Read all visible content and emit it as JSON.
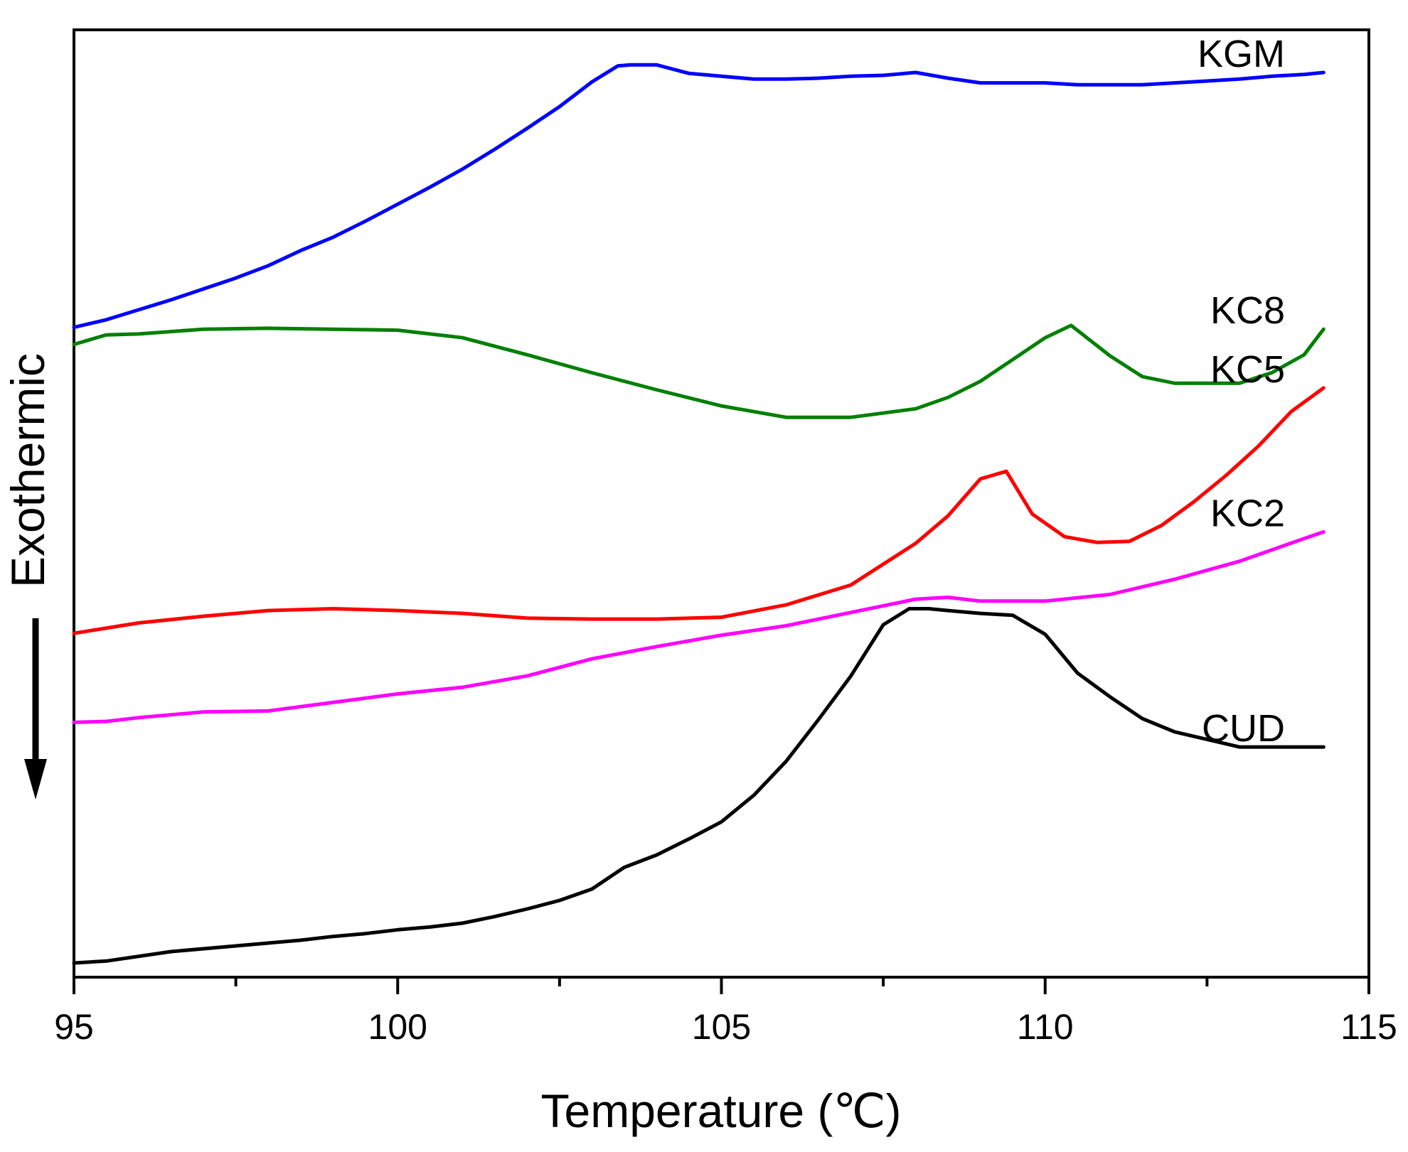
{
  "chart_data": {
    "type": "line",
    "title": "",
    "xlabel": "Temperature (℃)",
    "ylabel": "Exothermic",
    "xlim": [
      95,
      115
    ],
    "ylim": [
      0,
      100
    ],
    "xticks": [
      "95",
      "100",
      "105",
      "110",
      "115"
    ],
    "yticks_shown": false,
    "legend": "inline labels at right end of each curve",
    "series": [
      {
        "name": "KGM",
        "label": "KGM",
        "color": "#0000ff",
        "x": [
          95,
          95.5,
          96.5,
          97.5,
          98,
          98.5,
          99,
          99.5,
          100,
          100.5,
          101,
          101.5,
          102,
          102.5,
          103,
          103.4,
          103.6,
          104,
          104.5,
          105,
          105.5,
          106,
          106.5,
          107,
          107.5,
          108,
          108.5,
          109,
          109.5,
          110,
          110.5,
          111,
          111.5,
          112,
          112.5,
          113,
          113.5,
          114,
          114.3
        ],
        "y": [
          68.6,
          69.4,
          71.5,
          73.8,
          75.1,
          76.7,
          78.1,
          79.8,
          81.6,
          83.4,
          85.3,
          87.4,
          89.6,
          91.9,
          94.5,
          96.2,
          96.3,
          96.3,
          95.4,
          95.1,
          94.8,
          94.8,
          94.9,
          95.1,
          95.2,
          95.5,
          94.9,
          94.4,
          94.4,
          94.4,
          94.2,
          94.2,
          94.2,
          94.4,
          94.6,
          94.8,
          95.1,
          95.3,
          95.5
        ]
      },
      {
        "name": "KC8",
        "label": "KC8",
        "color": "#008000",
        "x": [
          95,
          95.5,
          96,
          97,
          98,
          99,
          100,
          101,
          102,
          103,
          104,
          105,
          106,
          107,
          108,
          108.5,
          109,
          109.5,
          110,
          110.4,
          111,
          111.5,
          112,
          113,
          113.5,
          114,
          114.3
        ],
        "y": [
          66.8,
          67.8,
          67.9,
          68.4,
          68.5,
          68.4,
          68.3,
          67.5,
          65.7,
          63.8,
          62.0,
          60.3,
          59.1,
          59.1,
          60.0,
          61.2,
          62.9,
          65.2,
          67.5,
          68.8,
          65.6,
          63.4,
          62.7,
          62.7,
          63.8,
          65.7,
          68.4
        ]
      },
      {
        "name": "KC5",
        "label": "KC5",
        "color": "#ff0000",
        "x": [
          95,
          96,
          97,
          98,
          99,
          100,
          101,
          102,
          103,
          104,
          105,
          106,
          107,
          108,
          108.5,
          109,
          109.4,
          109.8,
          110.3,
          110.8,
          111.3,
          111.8,
          112.3,
          112.8,
          113.3,
          113.8,
          114.3
        ],
        "y": [
          36.3,
          37.4,
          38.1,
          38.7,
          38.9,
          38.7,
          38.4,
          37.9,
          37.8,
          37.8,
          38.0,
          39.3,
          41.4,
          45.8,
          48.7,
          52.6,
          53.4,
          48.9,
          46.5,
          45.9,
          46.0,
          47.7,
          50.2,
          53.0,
          56.1,
          59.7,
          62.2
        ]
      },
      {
        "name": "KC2",
        "label": "KC2",
        "color": "#ff00ff",
        "x": [
          95,
          95.5,
          96,
          97,
          98,
          99,
          100,
          101,
          102,
          103,
          104,
          105,
          106,
          107,
          108,
          108.5,
          109,
          110,
          111,
          112,
          113,
          113.5,
          114,
          114.3
        ],
        "y": [
          26.9,
          27.0,
          27.4,
          28.0,
          28.1,
          29.0,
          29.9,
          30.6,
          31.8,
          33.6,
          34.9,
          36.1,
          37.1,
          38.5,
          39.9,
          40.1,
          39.7,
          39.7,
          40.4,
          42.0,
          43.9,
          45.1,
          46.3,
          47.0
        ]
      },
      {
        "name": "CUD",
        "label": "CUD",
        "color": "#000000",
        "x": [
          95,
          95.5,
          96.5,
          97.5,
          98,
          98.5,
          99,
          99.5,
          100,
          100.5,
          101,
          101.5,
          102,
          102.5,
          103,
          103.5,
          104,
          104.5,
          105,
          105.5,
          106,
          106.5,
          107,
          107.5,
          107.9,
          108.2,
          108.5,
          109,
          109.5,
          110,
          110.5,
          111,
          111.5,
          112,
          113,
          114.3
        ],
        "y": [
          1.5,
          1.7,
          2.7,
          3.3,
          3.6,
          3.9,
          4.3,
          4.6,
          5.0,
          5.3,
          5.7,
          6.4,
          7.2,
          8.1,
          9.3,
          11.6,
          12.9,
          14.6,
          16.4,
          19.2,
          22.8,
          27.2,
          31.8,
          37.2,
          38.9,
          38.9,
          38.7,
          38.4,
          38.2,
          36.2,
          32.1,
          29.6,
          27.3,
          25.9,
          24.3,
          24.3
        ]
      }
    ]
  }
}
